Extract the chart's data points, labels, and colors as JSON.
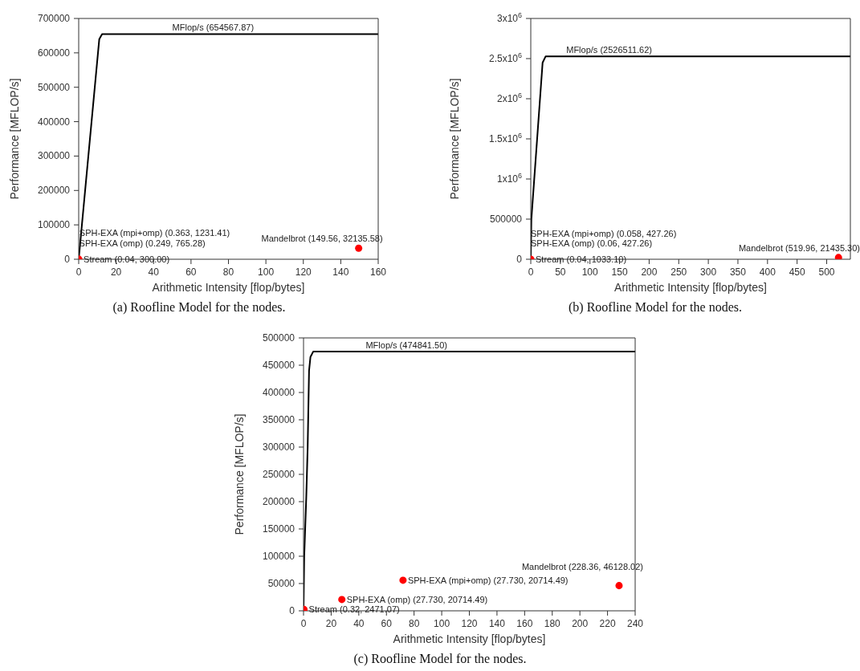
{
  "chart_data": [
    {
      "type": "scatter",
      "xlabel": "Arithmetic Intensity [flop/bytes]",
      "ylabel": "Performance [MFLOP/s]",
      "xlim": [
        0,
        160
      ],
      "ylim": [
        0,
        700000
      ],
      "xticks": [
        0,
        20,
        40,
        60,
        80,
        100,
        120,
        140,
        160
      ],
      "yticks": [
        0,
        100000,
        200000,
        300000,
        400000,
        500000,
        600000,
        700000
      ],
      "grid": false,
      "series": [
        {
          "type": "line",
          "marker": "none",
          "color": "#000000",
          "x": [
            0,
            11,
            12.5,
            160
          ],
          "values": [
            0,
            640000,
            654567.87,
            654567.87
          ]
        },
        {
          "marker": "circle",
          "color": "#ff0000",
          "x": [
            0.04,
            149.56
          ],
          "values": [
            300.0,
            32135.58
          ]
        }
      ],
      "annotations": [
        {
          "text": "MFlop/s (654567.87)",
          "x": 50,
          "y": 654567.87
        },
        {
          "text": "Stream (0.04, 300.00)",
          "x": 0.04,
          "y": 300.0
        },
        {
          "text": "SPH-EXA (omp) (0.249, 765.28)",
          "x": 0.249,
          "y": 765.28
        },
        {
          "text": "SPH-EXA (mpi+omp) (0.363, 1231.41)",
          "x": 0.363,
          "y": 1231.41
        },
        {
          "text": "Mandelbrot (149.56, 32135.58)",
          "x": 149.56,
          "y": 32135.58
        },
        "(a) Roofline Model for the nodes."
      ]
    },
    {
      "type": "scatter",
      "xlabel": "Arithmetic Intensity [flop/bytes]",
      "ylabel": "Performance [MFLOP/s]",
      "xlim": [
        0,
        540
      ],
      "ylim": [
        0,
        3000000
      ],
      "xticks": [
        0,
        50,
        100,
        150,
        200,
        250,
        300,
        350,
        400,
        450,
        500
      ],
      "yticks": [
        0,
        500000,
        {
          "value": 1000000,
          "label": "1x10$^{6}$"
        },
        {
          "value": 1500000,
          "label": "1.5x10$^{6}$"
        },
        {
          "value": 2000000,
          "label": "2x10$^{6}$"
        },
        {
          "value": 2500000,
          "label": "2.5x10$^{6}$"
        },
        {
          "value": 3000000,
          "label": "3x10$^{6}$"
        }
      ],
      "grid": false,
      "series": [
        {
          "type": "line",
          "marker": "none",
          "color": "#000000",
          "x": [
            0,
            1,
            20,
            25,
            540
          ],
          "values": [
            0,
            500000,
            2450000,
            2526511.62,
            2526511.62
          ]
        },
        {
          "marker": "circle",
          "color": "#ff0000",
          "x": [
            0.04,
            519.96
          ],
          "values": [
            1033.1,
            21435.3
          ]
        }
      ],
      "annotations": [
        {
          "text": "MFlop/s (2526511.62)",
          "x": 60,
          "y": 2526511.62
        },
        {
          "text": "Stream (0.04, 1033.10)",
          "x": 0.04,
          "y": 1033.1
        },
        {
          "text": "SPH-EXA (omp) (0.06, 427.26)",
          "x": 0.06,
          "y": 427.26
        },
        {
          "text": "SPH-EXA (mpi+omp) (0.058, 427.26)",
          "x": 0.058,
          "y": 427.26
        },
        {
          "text": "Mandelbrot (519.96, 21435.30)",
          "x": 519.96,
          "y": 21435.3
        },
        "(b) Roofline Model for the nodes."
      ]
    },
    {
      "type": "scatter",
      "xlabel": "Arithmetic Intensity [flop/bytes]",
      "ylabel": "Performance [MFLOP/s]",
      "xlim": [
        0,
        240
      ],
      "ylim": [
        0,
        500000
      ],
      "xticks": [
        0,
        20,
        40,
        60,
        80,
        100,
        120,
        140,
        160,
        180,
        200,
        220,
        240
      ],
      "yticks": [
        0,
        50000,
        100000,
        150000,
        200000,
        250000,
        300000,
        350000,
        400000,
        450000,
        500000
      ],
      "grid": false,
      "series": [
        {
          "type": "line",
          "marker": "none",
          "color": "#000000",
          "x": [
            0,
            0.5,
            2,
            3,
            4,
            5,
            7,
            240
          ],
          "values": [
            0,
            100000,
            210000,
            300000,
            440000,
            465000,
            474841.5,
            474841.5
          ]
        },
        {
          "marker": "circle",
          "color": "#ff0000",
          "x": [
            0.32,
            27.73,
            72,
            228.36
          ],
          "values": [
            2471.07,
            20714.49,
            56000,
            46128.02
          ]
        }
      ],
      "annotations": [
        {
          "text": "MFlop/s (474841.50)",
          "x": 45,
          "y": 474841.5
        },
        {
          "text": "Stream (0.32, 2471.07)",
          "x": 0.32,
          "y": 2471.07
        },
        {
          "text": "SPH-EXA (omp) (27.730, 20714.49)",
          "x": 27.73,
          "y": 20714.49
        },
        {
          "text": "SPH-EXA (mpi+omp) (27.730, 20714.49)",
          "x": 72,
          "y": 56000
        },
        {
          "text": "Mandelbrot (228.36, 46128.02)",
          "x": 228.36,
          "y": 46128.02
        },
        "(c) Roofline Model for the nodes."
      ]
    }
  ]
}
